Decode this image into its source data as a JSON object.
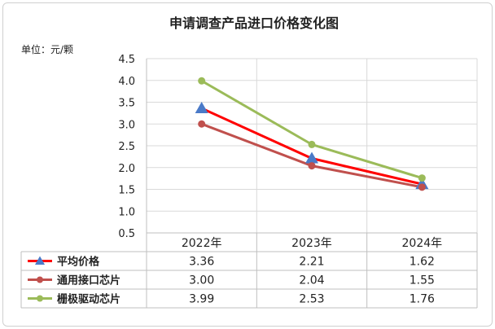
{
  "chart_data": {
    "type": "line",
    "title": "申请调查产品进口价格变化图",
    "unit_label": "单位：元/颗",
    "categories": [
      "2022年",
      "2023年",
      "2024年"
    ],
    "ylim": [
      0.5,
      4.5
    ],
    "yticks": [
      0.5,
      1.0,
      1.5,
      2.0,
      2.5,
      3.0,
      3.5,
      4.0,
      4.5
    ],
    "ytick_labels": [
      "0.5",
      "1.0",
      "1.5",
      "2.0",
      "2.5",
      "3.0",
      "3.5",
      "4.0",
      "4.5"
    ],
    "grid": true,
    "legend": "data-table",
    "series": [
      {
        "name": "平均价格",
        "values": [
          3.36,
          2.21,
          1.62
        ],
        "value_labels": [
          "3.36",
          "2.21",
          "1.62"
        ],
        "color": "#ff0000",
        "marker": "triangle",
        "marker_color": "#4a7ac8"
      },
      {
        "name": "通用接口芯片",
        "values": [
          3.0,
          2.04,
          1.55
        ],
        "value_labels": [
          "3.00",
          "2.04",
          "1.55"
        ],
        "color": "#c0504d",
        "marker": "circle",
        "marker_color": "#c0504d"
      },
      {
        "name": "栅极驱动芯片",
        "values": [
          3.99,
          2.53,
          1.76
        ],
        "value_labels": [
          "3.99",
          "2.53",
          "1.76"
        ],
        "color": "#9bbb59",
        "marker": "circle",
        "marker_color": "#9bbb59"
      }
    ]
  }
}
